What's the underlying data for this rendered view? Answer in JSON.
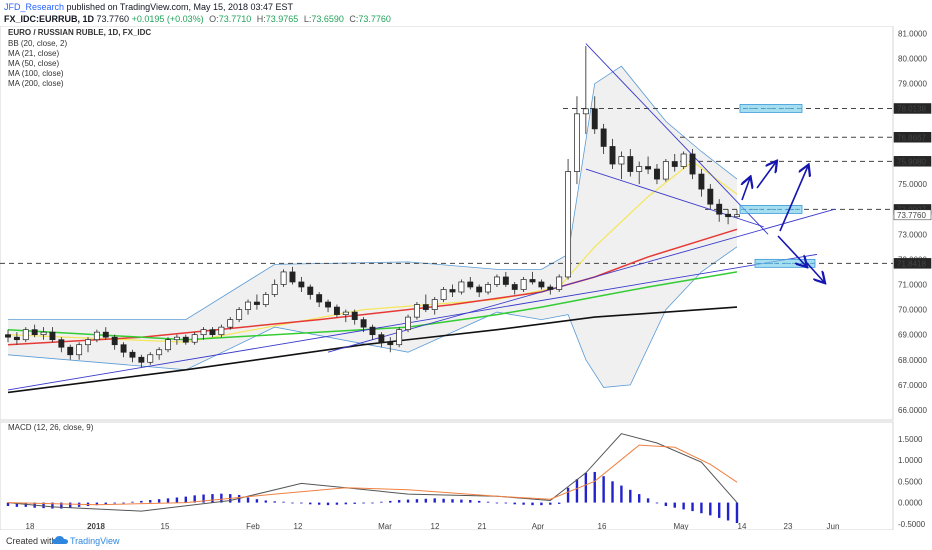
{
  "header": {
    "author": "JFD_Research",
    "published": "published on TradingView.com, May 15, 2018 03:47 EST",
    "symbol": "FX_IDC:EURRUB, 1D",
    "last": "73.7760",
    "change": "+0.0195 (+0.03%)",
    "open_label": "O:",
    "open": "73.7710",
    "high_label": "H:",
    "high": "73.9765",
    "low_label": "L:",
    "low": "73.6590",
    "close_label": "C:",
    "close": "73.7760"
  },
  "legend": {
    "title": "EURO / RUSSIAN RUBLE, 1D, FX_IDC",
    "items": [
      "BB (20, close, 2)",
      "MA (21, close)",
      "MA (50, close)",
      "MA (100, close)",
      "MA (200, close)"
    ]
  },
  "macd_label": "MACD (12, 26, close, 9)",
  "footer": {
    "created": "Created with",
    "brand": "TradingView"
  },
  "colors": {
    "ma21": "#f5e65a",
    "ma50": "#e53935",
    "ma100": "#33cc33",
    "ma200": "#111111",
    "bb": "#5b9bd5",
    "trend": "#3a3acc",
    "macd": "#555555",
    "signal": "#f08040",
    "hist": "#2222cc",
    "box": "#7fd0ea",
    "arrow": "#1515b0"
  },
  "chart_data": {
    "type": "candlestick",
    "title": "EURO / RUSSIAN RUBLE, 1D, FX_IDC",
    "x_tick_labels": [
      "18",
      "2018",
      "15",
      "Feb",
      "12",
      "Mar",
      "12",
      "21",
      "Apr",
      "16",
      "May",
      "14",
      "23",
      "Jun"
    ],
    "y_ticks": [
      "81.0000",
      "80.0000",
      "79.0000",
      "76.0000",
      "75.0000",
      "73.0000",
      "72.0000",
      "71.0000",
      "70.0000",
      "69.0000",
      "68.0000",
      "67.0000",
      "66.0000"
    ],
    "ylim": [
      65.6,
      81.3
    ],
    "price_tags": [
      {
        "label": "78.0138",
        "value": 78.0138,
        "color": "#262626"
      },
      {
        "label": "76.8667",
        "value": 76.8667,
        "color": "#262626"
      },
      {
        "label": "75.9080",
        "value": 75.908,
        "color": "#262626"
      },
      {
        "label": "73.9907",
        "value": 73.9907,
        "color": "#262626"
      },
      {
        "label": "73.7760",
        "value": 73.776,
        "color": "#ffffff"
      },
      {
        "label": "71.8418",
        "value": 71.8418,
        "color": "#262626"
      }
    ],
    "horizontal_levels": [
      78.0138,
      76.8667,
      75.908,
      73.9907,
      71.8418
    ],
    "candles": [
      [
        69.0,
        69.2,
        68.7,
        68.9
      ],
      [
        68.9,
        69.1,
        68.6,
        68.8
      ],
      [
        68.8,
        69.3,
        68.7,
        69.2
      ],
      [
        69.2,
        69.4,
        68.9,
        69.0
      ],
      [
        69.0,
        69.3,
        68.8,
        69.1
      ],
      [
        69.1,
        69.3,
        68.7,
        68.8
      ],
      [
        68.8,
        68.9,
        68.3,
        68.5
      ],
      [
        68.5,
        68.6,
        68.0,
        68.2
      ],
      [
        68.2,
        68.7,
        68.0,
        68.6
      ],
      [
        68.6,
        68.9,
        68.3,
        68.8
      ],
      [
        68.8,
        69.2,
        68.7,
        69.1
      ],
      [
        69.1,
        69.3,
        68.8,
        68.9
      ],
      [
        68.9,
        69.0,
        68.4,
        68.6
      ],
      [
        68.6,
        68.7,
        68.1,
        68.3
      ],
      [
        68.3,
        68.4,
        67.9,
        68.1
      ],
      [
        68.1,
        68.2,
        67.7,
        67.9
      ],
      [
        67.9,
        68.3,
        67.8,
        68.2
      ],
      [
        68.2,
        68.5,
        68.0,
        68.4
      ],
      [
        68.4,
        68.9,
        68.3,
        68.8
      ],
      [
        68.8,
        69.0,
        68.6,
        68.9
      ],
      [
        68.9,
        69.0,
        68.6,
        68.7
      ],
      [
        68.7,
        69.1,
        68.6,
        69.0
      ],
      [
        69.0,
        69.3,
        68.8,
        69.2
      ],
      [
        69.2,
        69.3,
        68.9,
        69.0
      ],
      [
        69.0,
        69.4,
        68.9,
        69.3
      ],
      [
        69.3,
        69.7,
        69.2,
        69.6
      ],
      [
        69.6,
        70.1,
        69.5,
        70.0
      ],
      [
        70.0,
        70.4,
        69.8,
        70.3
      ],
      [
        70.3,
        70.6,
        70.0,
        70.2
      ],
      [
        70.2,
        70.7,
        70.1,
        70.6
      ],
      [
        70.6,
        71.2,
        70.5,
        71.0
      ],
      [
        71.0,
        71.6,
        70.9,
        71.5
      ],
      [
        71.5,
        71.7,
        71.0,
        71.1
      ],
      [
        71.1,
        71.3,
        70.7,
        70.9
      ],
      [
        70.9,
        71.0,
        70.4,
        70.6
      ],
      [
        70.6,
        70.7,
        70.1,
        70.3
      ],
      [
        70.3,
        70.4,
        69.9,
        70.1
      ],
      [
        70.1,
        70.2,
        69.7,
        69.8
      ],
      [
        69.8,
        70.0,
        69.5,
        69.9
      ],
      [
        69.9,
        70.0,
        69.4,
        69.6
      ],
      [
        69.6,
        69.7,
        69.1,
        69.3
      ],
      [
        69.3,
        69.4,
        68.8,
        69.0
      ],
      [
        69.0,
        69.1,
        68.5,
        68.7
      ],
      [
        68.7,
        68.9,
        68.3,
        68.6
      ],
      [
        68.6,
        69.3,
        68.5,
        69.2
      ],
      [
        69.2,
        69.8,
        69.1,
        69.7
      ],
      [
        69.7,
        70.3,
        69.6,
        70.2
      ],
      [
        70.2,
        70.6,
        69.9,
        70.0
      ],
      [
        70.0,
        70.5,
        69.8,
        70.4
      ],
      [
        70.4,
        70.9,
        70.3,
        70.8
      ],
      [
        70.8,
        71.0,
        70.5,
        70.7
      ],
      [
        70.7,
        71.2,
        70.6,
        71.1
      ],
      [
        71.1,
        71.3,
        70.8,
        70.9
      ],
      [
        70.9,
        71.0,
        70.5,
        70.7
      ],
      [
        70.7,
        71.1,
        70.6,
        71.0
      ],
      [
        71.0,
        71.4,
        70.9,
        71.3
      ],
      [
        71.3,
        71.5,
        70.9,
        71.0
      ],
      [
        71.0,
        71.1,
        70.6,
        70.8
      ],
      [
        70.8,
        71.3,
        70.7,
        71.2
      ],
      [
        71.2,
        71.5,
        71.0,
        71.1
      ],
      [
        71.1,
        71.2,
        70.8,
        70.9
      ],
      [
        70.9,
        71.0,
        70.6,
        70.8
      ],
      [
        70.8,
        71.4,
        70.7,
        71.3
      ],
      [
        71.3,
        76.0,
        71.2,
        75.5
      ],
      [
        75.5,
        78.5,
        75.0,
        77.8
      ],
      [
        77.8,
        80.5,
        77.0,
        78.0
      ],
      [
        78.0,
        78.5,
        77.0,
        77.2
      ],
      [
        77.2,
        77.4,
        76.2,
        76.5
      ],
      [
        76.5,
        76.8,
        75.6,
        75.8
      ],
      [
        75.8,
        76.3,
        75.2,
        76.1
      ],
      [
        76.1,
        76.4,
        75.3,
        75.5
      ],
      [
        75.5,
        75.9,
        75.0,
        75.7
      ],
      [
        75.7,
        76.1,
        75.4,
        75.6
      ],
      [
        75.6,
        75.8,
        75.0,
        75.2
      ],
      [
        75.2,
        76.0,
        75.1,
        75.9
      ],
      [
        75.9,
        76.2,
        75.5,
        75.7
      ],
      [
        75.7,
        76.3,
        75.6,
        76.2
      ],
      [
        76.2,
        76.4,
        75.2,
        75.4
      ],
      [
        75.4,
        75.6,
        74.5,
        74.8
      ],
      [
        74.8,
        75.0,
        74.0,
        74.2
      ],
      [
        74.2,
        74.4,
        73.5,
        73.8
      ],
      [
        73.8,
        74.0,
        73.4,
        73.7
      ],
      [
        73.7,
        73.98,
        73.66,
        73.78
      ]
    ],
    "series": [
      {
        "name": "MA (21, close)",
        "values": [
          [
            0,
            69.0
          ],
          [
            20,
            68.7
          ],
          [
            40,
            70.0
          ],
          [
            55,
            70.4
          ],
          [
            62,
            70.9
          ],
          [
            66,
            72.5
          ],
          [
            72,
            74.5
          ],
          [
            77,
            75.9
          ],
          [
            82,
            74.6
          ]
        ]
      },
      {
        "name": "MA (50, close)",
        "values": [
          [
            0,
            68.6
          ],
          [
            15,
            68.9
          ],
          [
            35,
            69.6
          ],
          [
            50,
            70.2
          ],
          [
            60,
            70.7
          ],
          [
            66,
            71.3
          ],
          [
            72,
            72.1
          ],
          [
            82,
            73.2
          ]
        ]
      },
      {
        "name": "MA (100, close)",
        "values": [
          [
            0,
            69.2
          ],
          [
            20,
            68.8
          ],
          [
            45,
            69.3
          ],
          [
            55,
            69.8
          ],
          [
            60,
            70.1
          ],
          [
            66,
            70.5
          ],
          [
            72,
            70.9
          ],
          [
            82,
            71.5
          ]
        ]
      },
      {
        "name": "MA (200, close)",
        "values": [
          [
            0,
            66.7
          ],
          [
            20,
            67.6
          ],
          [
            40,
            68.6
          ],
          [
            55,
            69.2
          ],
          [
            66,
            69.7
          ],
          [
            82,
            70.1
          ]
        ]
      }
    ],
    "bollinger": {
      "upper": [
        [
          0,
          69.6
        ],
        [
          20,
          69.6
        ],
        [
          30,
          71.8
        ],
        [
          45,
          71.9
        ],
        [
          55,
          71.6
        ],
        [
          60,
          71.6
        ],
        [
          63,
          72.2
        ],
        [
          66,
          79.0
        ],
        [
          69,
          79.7
        ],
        [
          74,
          77.5
        ],
        [
          78,
          76.3
        ],
        [
          82,
          75.2
        ]
      ],
      "lower": [
        [
          0,
          68.2
        ],
        [
          20,
          67.6
        ],
        [
          30,
          69.3
        ],
        [
          45,
          68.3
        ],
        [
          55,
          69.9
        ],
        [
          60,
          69.6
        ],
        [
          63,
          69.8
        ],
        [
          65,
          68.0
        ],
        [
          67,
          66.9
        ],
        [
          70,
          67.0
        ],
        [
          74,
          70.0
        ],
        [
          78,
          71.5
        ],
        [
          82,
          72.5
        ]
      ]
    },
    "macd": {
      "ylim": [
        -0.55,
        1.8
      ],
      "y_ticks": [
        "1.5000",
        "1.0000",
        "0.5000",
        "0.0000",
        "-0.5000"
      ],
      "macd_line": [
        [
          0,
          0.0
        ],
        [
          5,
          -0.1
        ],
        [
          15,
          -0.2
        ],
        [
          25,
          0.05
        ],
        [
          33,
          0.45
        ],
        [
          38,
          0.35
        ],
        [
          45,
          0.2
        ],
        [
          55,
          0.15
        ],
        [
          61,
          0.05
        ],
        [
          65,
          0.7
        ],
        [
          69,
          1.62
        ],
        [
          73,
          1.4
        ],
        [
          78,
          0.95
        ],
        [
          82,
          0.0
        ]
      ],
      "signal_line": [
        [
          0,
          0.0
        ],
        [
          10,
          -0.05
        ],
        [
          20,
          0.0
        ],
        [
          30,
          0.2
        ],
        [
          38,
          0.35
        ],
        [
          45,
          0.3
        ],
        [
          55,
          0.15
        ],
        [
          61,
          0.08
        ],
        [
          66,
          0.5
        ],
        [
          71,
          1.35
        ],
        [
          75,
          1.3
        ],
        [
          79,
          0.9
        ],
        [
          82,
          0.48
        ]
      ],
      "histogram": [
        -0.08,
        -0.1,
        -0.1,
        -0.12,
        -0.13,
        -0.14,
        -0.14,
        -0.12,
        -0.1,
        -0.08,
        -0.06,
        -0.04,
        -0.02,
        0.0,
        0.02,
        0.04,
        0.06,
        0.08,
        0.1,
        0.12,
        0.14,
        0.17,
        0.19,
        0.2,
        0.21,
        0.2,
        0.18,
        0.12,
        0.08,
        0.05,
        0.03,
        0.02,
        0.0,
        -0.02,
        -0.04,
        -0.05,
        -0.06,
        -0.05,
        -0.04,
        -0.03,
        -0.02,
        0.0,
        0.02,
        0.04,
        0.06,
        0.07,
        0.08,
        0.09,
        0.1,
        0.09,
        0.08,
        0.07,
        0.06,
        0.04,
        0.02,
        0.0,
        -0.02,
        -0.04,
        -0.05,
        -0.06,
        -0.06,
        -0.05,
        -0.03,
        0.35,
        0.55,
        0.7,
        0.72,
        0.62,
        0.5,
        0.4,
        0.3,
        0.2,
        0.1,
        0.0,
        -0.08,
        -0.12,
        -0.16,
        -0.2,
        -0.25,
        -0.3,
        -0.36,
        -0.42,
        -0.48
      ]
    },
    "annotation_boxes": [
      {
        "price": 78.0138
      },
      {
        "price": 73.9907
      },
      {
        "price": 71.8418
      }
    ]
  }
}
